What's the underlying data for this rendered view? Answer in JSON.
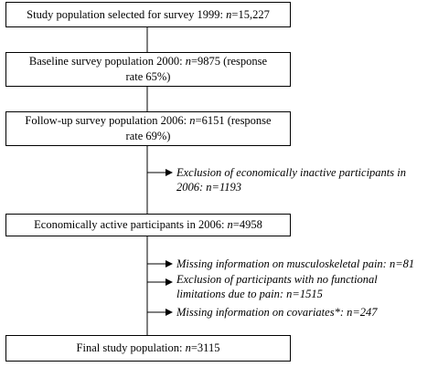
{
  "boxes": {
    "selected": {
      "prefix": "Study population selected for survey 1999: ",
      "n": "n",
      "suffix": "=15,227"
    },
    "baseline": {
      "line1_prefix": "Baseline survey population 2000: ",
      "n": "n",
      "line1_suffix": "=9875 (response",
      "line2": "rate 65%)"
    },
    "followup": {
      "line1_prefix": "Follow-up survey population 2006: ",
      "n": "n",
      "line1_suffix": "=6151 (response",
      "line2": "rate 69%)"
    },
    "active": {
      "prefix": "Economically active participants in 2006: ",
      "n": "n",
      "suffix": "=4958"
    },
    "final": {
      "prefix": "Final study population: ",
      "n": "n",
      "suffix": "=3115"
    }
  },
  "exclusions": {
    "inactive": {
      "line1": "Exclusion of economically inactive participants in",
      "line2": "2006: n=1193"
    },
    "pain_missing": {
      "line1": "Missing information on musculoskeletal pain: n=81"
    },
    "no_limitations": {
      "line1": "Exclusion of participants with no functional",
      "line2": "limitations due to pain: n=1515"
    },
    "covariates": {
      "line1": "Missing information on covariates*: n=247"
    }
  }
}
